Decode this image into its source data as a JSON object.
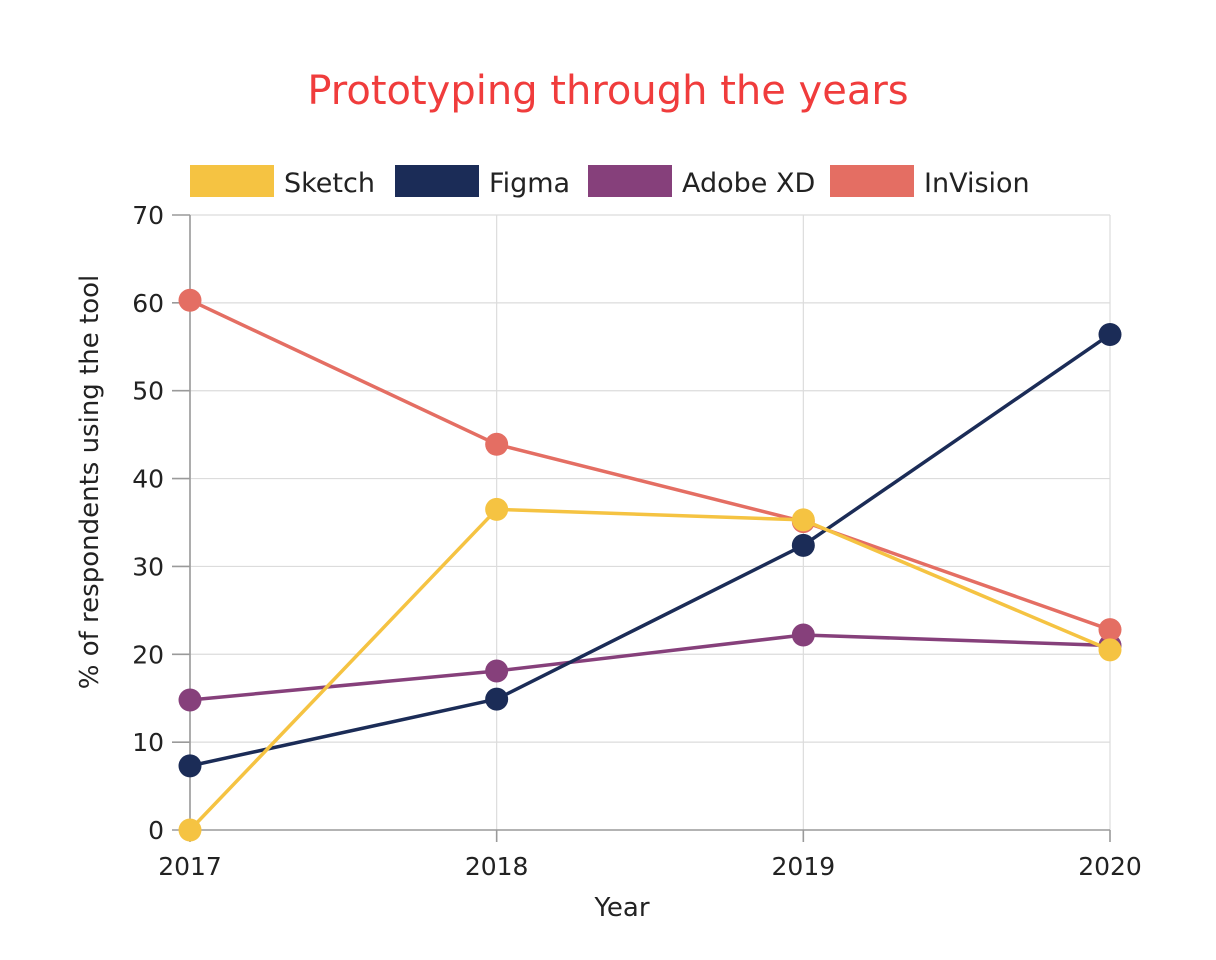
{
  "chart_data": {
    "type": "line",
    "title": "Prototyping through the years",
    "title_color": "#f03c3c",
    "xlabel": "Year",
    "ylabel": "% of respondents using the tool",
    "x": [
      "2017",
      "2018",
      "2019",
      "2020"
    ],
    "y_ticks": [
      "0",
      "10",
      "20",
      "30",
      "40",
      "50",
      "60",
      "70"
    ],
    "ylim": [
      0,
      70
    ],
    "grid": true,
    "legend_position": "top",
    "series": [
      {
        "name": "Sketch",
        "color": "#f5c342",
        "values": [
          0,
          36.5,
          35.3,
          20.5
        ]
      },
      {
        "name": "Figma",
        "color": "#1b2c57",
        "values": [
          7.3,
          14.9,
          32.4,
          56.4
        ]
      },
      {
        "name": "Adobe XD",
        "color": "#86407b",
        "values": [
          14.8,
          18.1,
          22.2,
          21.0
        ]
      },
      {
        "name": "InVision",
        "color": "#e46e63",
        "values": [
          60.3,
          43.9,
          35.1,
          22.8
        ]
      }
    ],
    "series_draw_order": [
      "Adobe XD",
      "InVision",
      "Figma",
      "Sketch"
    ]
  }
}
